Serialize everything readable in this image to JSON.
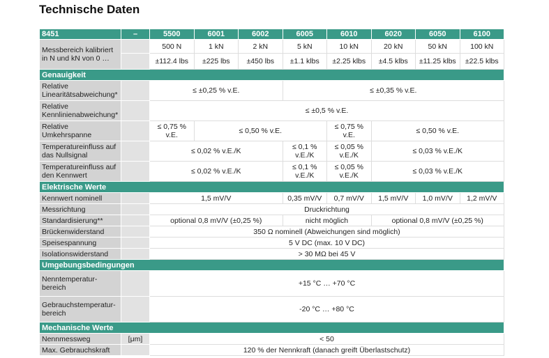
{
  "title": "Technische Daten",
  "header": {
    "model": "8451",
    "unit": "–",
    "columns": [
      "5500",
      "6001",
      "6002",
      "6005",
      "6010",
      "6020",
      "6050",
      "6100"
    ]
  },
  "messbereich": {
    "label": "Messbereich kalibriert in N und kN von 0 …",
    "kn": [
      "500 N",
      "1 kN",
      "2 kN",
      "5 kN",
      "10 kN",
      "20 kN",
      "50 kN",
      "100 kN"
    ],
    "lbs": [
      "±112.4 lbs",
      "±225 lbs",
      "±450 lbs",
      "±1.1 klbs",
      "±2.25 klbs",
      "±4.5 klbs",
      "±11.25 klbs",
      "±22.5 klbs"
    ]
  },
  "genauigkeit": {
    "title": "Genauigkeit",
    "linear": {
      "label": "Relative Linearitätsabweichung*",
      "a": "≤ ±0,25 % v.E.",
      "b": "≤ ±0,35 % v.E."
    },
    "kennlinie": {
      "label": "Relative Kennlinienabweichung*",
      "a": "≤ ±0,5 % v.E."
    },
    "umkehr": {
      "label": "Relative Umkehrspanne",
      "a": "≤ 0,75 % v.E.",
      "b": "≤ 0,50 % v.E.",
      "c": "≤ 0,75 % v.E.",
      "d": "≤ 0,50 % v.E."
    },
    "tk0": {
      "label": "Temperatureinfluss auf das Nullsignal",
      "a": "≤ 0,02 % v.E./K",
      "b": "≤ 0,1 % v.E./K",
      "c": "≤ 0,05 % v.E./K",
      "d": "≤ 0,03 % v.E./K"
    },
    "tkc": {
      "label": "Temperatureinfluss auf den Kennwert",
      "a": "≤ 0,02 % v.E./K",
      "b": "≤ 0,1 % v.E./K",
      "c": "≤ 0,05 % v.E./K",
      "d": "≤ 0,03 % v.E./K"
    }
  },
  "elektrisch": {
    "title": "Elektrische Werte",
    "kennwert": {
      "label": "Kennwert nominell",
      "values": [
        "1,5 mV/V",
        "0,35 mV/V",
        "0,7 mV/V",
        "1,5 mV/V",
        "1,0 mV/V",
        "1,2 mV/V"
      ]
    },
    "messrichtung": {
      "label": "Messrichtung",
      "value": "Druckrichtung"
    },
    "standard": {
      "label": "Standardisierung**",
      "a": "optional 0,8 mV/V (±0,25 %)",
      "b": "nicht möglich",
      "c": "optional 0,8 mV/V (±0,25 %)"
    },
    "bruecke": {
      "label": "Brückenwiderstand",
      "value": "350 Ω nominell (Abweichungen sind möglich)"
    },
    "speise": {
      "label": "Speisespannung",
      "value": "5 V DC (max. 10 V DC)"
    },
    "isolation": {
      "label": "Isolationswiderstand",
      "value": "> 30 MΩ bei 45 V"
    }
  },
  "umgebung": {
    "title": "Umgebungsbedingungen",
    "nenn": {
      "label": "Nenntemperatur-bereich",
      "value": "+15 °C … +70 °C"
    },
    "gebrauch": {
      "label": "Gebrauchstemperatur-bereich",
      "value": "-20 °C … +80 °C"
    }
  },
  "mechanisch": {
    "title": "Mechanische Werte",
    "weg": {
      "label": "Nennmessweg",
      "unit": "[μm]",
      "value": "< 50"
    },
    "kraft": {
      "label": "Max. Gebrauchskraft",
      "value": "120 % der Nennkraft (danach greift Überlastschutz)"
    }
  }
}
